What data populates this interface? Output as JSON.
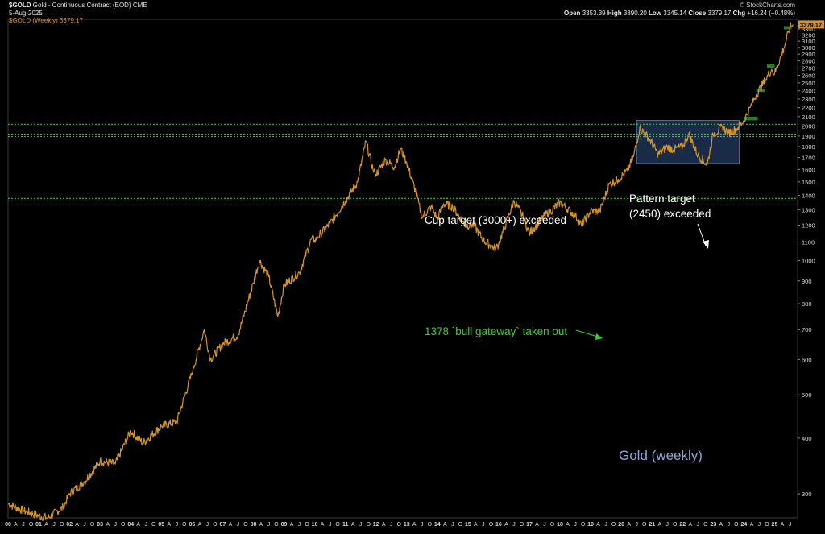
{
  "header": {
    "symbol": "$GOLD",
    "description": "Gold - Continuous Contract (EOD)",
    "exchange": "CME",
    "date": "5-Aug-2025",
    "series_label": "$GOLD (Weekly) 3379.17",
    "brand": "© StockCharts.com",
    "ohlc": {
      "open_label": "Open",
      "open": "3353.39",
      "high_label": "High",
      "high": "3390.20",
      "low_label": "Low",
      "low": "3345.14",
      "close_label": "Close",
      "close": "3379.17",
      "chg_label": "Chg",
      "chg": "+16.24 (+0.48%)"
    },
    "last_price_badge": "3379.17"
  },
  "annotations": {
    "cup_target": "Cup target (3000+) exceeded",
    "pattern_target_line1": "Pattern target",
    "pattern_target_line2": "(2450) exceeded",
    "bull_gateway": "1378 `bull gateway` taken out",
    "chart_name": "Gold (weekly)"
  },
  "colors": {
    "background": "#000000",
    "price_line": "#d4942c",
    "support_lines": "#39d12f",
    "annotation_green": "#39d12f",
    "annotation_white": "#ffffff",
    "chart_name": "#8fa6d6",
    "range_box_fill": "#1d3352",
    "range_box_stroke": "#5f7fa8",
    "target_box": "#2f8a2f",
    "axis_text": "#d8d8d8"
  },
  "chart_data": {
    "type": "line",
    "title": "Gold (weekly)",
    "xlabel": "",
    "ylabel": "",
    "grid": false,
    "yscale": "log",
    "ylim": [
      265,
      3470
    ],
    "y_ticks": [
      300,
      400,
      500,
      600,
      700,
      800,
      900,
      1000,
      1100,
      1200,
      1300,
      1400,
      1500,
      1600,
      1700,
      1800,
      1900,
      2000,
      2100,
      2200,
      2300,
      2400,
      2500,
      2600,
      2700,
      2800,
      2900,
      3000,
      3100,
      3200,
      3300,
      3400
    ],
    "xlim": [
      2000.0,
      2025.75
    ],
    "x_tick_labels": [
      "00",
      "A",
      "J",
      "O",
      "01",
      "A",
      "J",
      "O",
      "02",
      "A",
      "J",
      "O",
      "03",
      "A",
      "J",
      "O",
      "04",
      "A",
      "J",
      "O",
      "05",
      "A",
      "J",
      "O",
      "06",
      "A",
      "J",
      "O",
      "07",
      "A",
      "J",
      "O",
      "08",
      "A",
      "J",
      "O",
      "09",
      "A",
      "J",
      "O",
      "10",
      "A",
      "J",
      "O",
      "11",
      "A",
      "J",
      "O",
      "12",
      "A",
      "J",
      "O",
      "13",
      "A",
      "J",
      "O",
      "14",
      "A",
      "J",
      "O",
      "15",
      "A",
      "J",
      "O",
      "16",
      "A",
      "J",
      "O",
      "17",
      "A",
      "J",
      "O",
      "18",
      "A",
      "J",
      "O",
      "19",
      "A",
      "J",
      "O",
      "20",
      "A",
      "J",
      "O",
      "21",
      "A",
      "J",
      "O",
      "22",
      "A",
      "J",
      "O",
      "23",
      "A",
      "J",
      "O",
      "24",
      "A",
      "J",
      "O",
      "25",
      "A",
      "J"
    ],
    "series": [
      {
        "values_x": [
          2000.0,
          2000.5,
          2001.0,
          2001.3,
          2001.8,
          2002.0,
          2002.5,
          2003.0,
          2003.5,
          2004.0,
          2004.4,
          2005.0,
          2005.5,
          2006.0,
          2006.4,
          2006.6,
          2007.0,
          2007.5,
          2008.0,
          2008.2,
          2008.5,
          2008.8,
          2009.0,
          2009.5,
          2009.9,
          2010.0,
          2010.5,
          2011.0,
          2011.4,
          2011.67,
          2011.9,
          2012.0,
          2012.3,
          2012.6,
          2012.8,
          2013.0,
          2013.3,
          2013.5,
          2013.8,
          2014.0,
          2014.2,
          2014.5,
          2014.9,
          2015.2,
          2015.5,
          2015.9,
          2016.0,
          2016.5,
          2016.8,
          2017.0,
          2017.5,
          2017.7,
          2018.0,
          2018.5,
          2018.7,
          2019.0,
          2019.3,
          2019.6,
          2019.9,
          2020.2,
          2020.4,
          2020.6,
          2020.9,
          2021.2,
          2021.5,
          2021.7,
          2022.0,
          2022.2,
          2022.5,
          2022.8,
          2023.0,
          2023.3,
          2023.5,
          2023.8,
          2024.0,
          2024.2,
          2024.4,
          2024.7,
          2024.9,
          2025.0,
          2025.3,
          2025.5,
          2025.6
        ],
        "values": [
          285,
          275,
          268,
          265,
          280,
          300,
          320,
          355,
          350,
          415,
          390,
          425,
          435,
          560,
          700,
          600,
          650,
          680,
          890,
          1000,
          920,
          750,
          880,
          940,
          1120,
          1110,
          1210,
          1360,
          1500,
          1850,
          1600,
          1560,
          1680,
          1620,
          1780,
          1660,
          1420,
          1250,
          1320,
          1240,
          1340,
          1320,
          1200,
          1200,
          1110,
          1060,
          1090,
          1360,
          1250,
          1150,
          1260,
          1290,
          1350,
          1260,
          1200,
          1290,
          1290,
          1480,
          1520,
          1590,
          1710,
          1980,
          1880,
          1730,
          1800,
          1770,
          1800,
          1920,
          1720,
          1640,
          1920,
          1990,
          1930,
          1980,
          2060,
          2200,
          2350,
          2540,
          2680,
          2620,
          2990,
          3330,
          3379.17
        ]
      }
    ],
    "horizontal_lines": [
      2020,
      1920,
      1895,
      1378,
      1360
    ],
    "range_box": {
      "x": [
        2020.5,
        2023.85
      ],
      "y": [
        1650,
        2060
      ]
    },
    "target_boxes": [
      {
        "x": [
          2024.0,
          2024.45
        ],
        "y": [
          2060,
          2100
        ]
      },
      {
        "x": [
          2024.4,
          2024.7
        ],
        "y": [
          2405,
          2425
        ]
      },
      {
        "x": [
          2024.75,
          2025.0
        ],
        "y": [
          2700,
          2750
        ]
      },
      {
        "x": [
          2025.3,
          2025.55
        ],
        "y": [
          3300,
          3350
        ]
      }
    ],
    "last_value": 3379.17
  }
}
